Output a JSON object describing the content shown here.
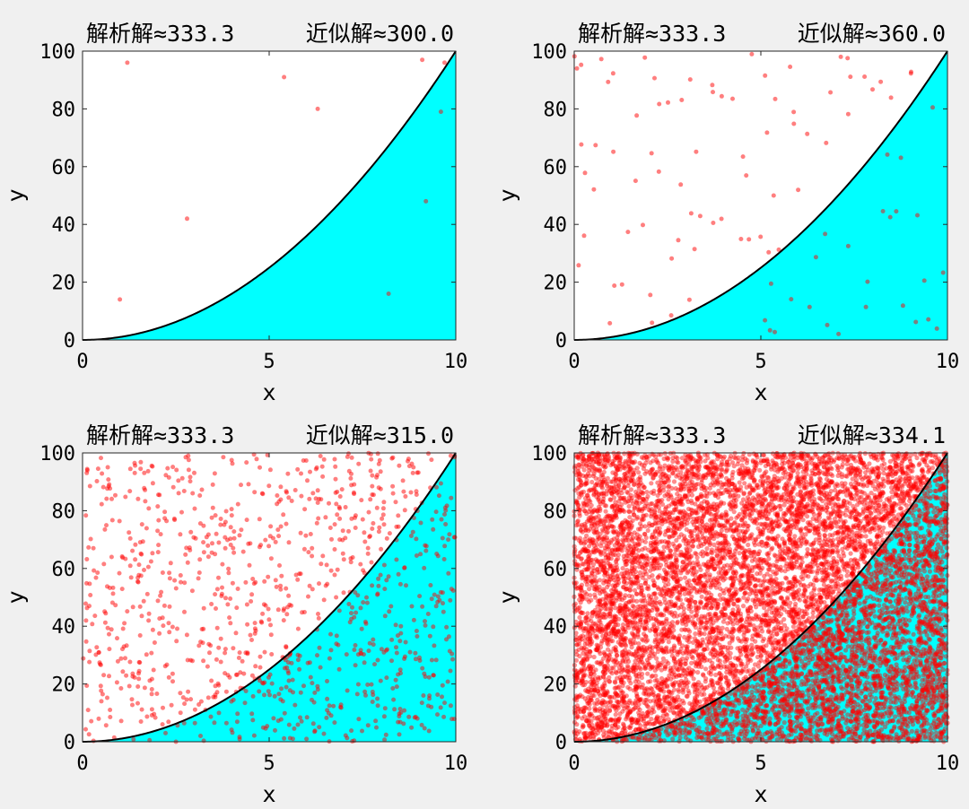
{
  "chart_data": [
    {
      "type": "area",
      "title_left": "解析解≈333.3",
      "title_right": "近似解≈300.0",
      "xlabel": "x",
      "ylabel": "y",
      "xlim": [
        0,
        10
      ],
      "ylim": [
        0,
        100
      ],
      "xticks": [
        0,
        5,
        10
      ],
      "yticks": [
        0,
        20,
        40,
        60,
        80,
        100
      ],
      "curve": "y = x^2",
      "n_points": 10,
      "points": [
        [
          1.2,
          96
        ],
        [
          5.4,
          91
        ],
        [
          9.1,
          97
        ],
        [
          9.7,
          96
        ],
        [
          6.3,
          80
        ],
        [
          9.6,
          79
        ],
        [
          2.8,
          42
        ],
        [
          9.2,
          48
        ],
        [
          1.0,
          14
        ],
        [
          8.2,
          16
        ]
      ]
    },
    {
      "type": "area",
      "title_left": "解析解≈333.3",
      "title_right": "近似解≈360.0",
      "xlabel": "x",
      "ylabel": "y",
      "xlim": [
        0,
        10
      ],
      "ylim": [
        0,
        100
      ],
      "xticks": [
        0,
        5,
        10
      ],
      "yticks": [
        0,
        20,
        40,
        60,
        80,
        100
      ],
      "curve": "y = x^2",
      "n_points": 100,
      "seed": 2
    },
    {
      "type": "area",
      "title_left": "解析解≈333.3",
      "title_right": "近似解≈315.0",
      "xlabel": "x",
      "ylabel": "y",
      "xlim": [
        0,
        10
      ],
      "ylim": [
        0,
        100
      ],
      "xticks": [
        0,
        5,
        10
      ],
      "yticks": [
        0,
        20,
        40,
        60,
        80,
        100
      ],
      "curve": "y = x^2",
      "n_points": 1000,
      "seed": 3
    },
    {
      "type": "area",
      "title_left": "解析解≈333.3",
      "title_right": "近似解≈334.1",
      "xlabel": "x",
      "ylabel": "y",
      "xlim": [
        0,
        10
      ],
      "ylim": [
        0,
        100
      ],
      "xticks": [
        0,
        5,
        10
      ],
      "yticks": [
        0,
        20,
        40,
        60,
        80,
        100
      ],
      "curve": "y = x^2",
      "n_points": 10000,
      "seed": 4
    }
  ],
  "colors": {
    "background": "#f0f0f0",
    "plot_area": "#ffffff",
    "fill_under_curve": "#00ffff",
    "curve": "#000000",
    "points": "#ff0000"
  }
}
